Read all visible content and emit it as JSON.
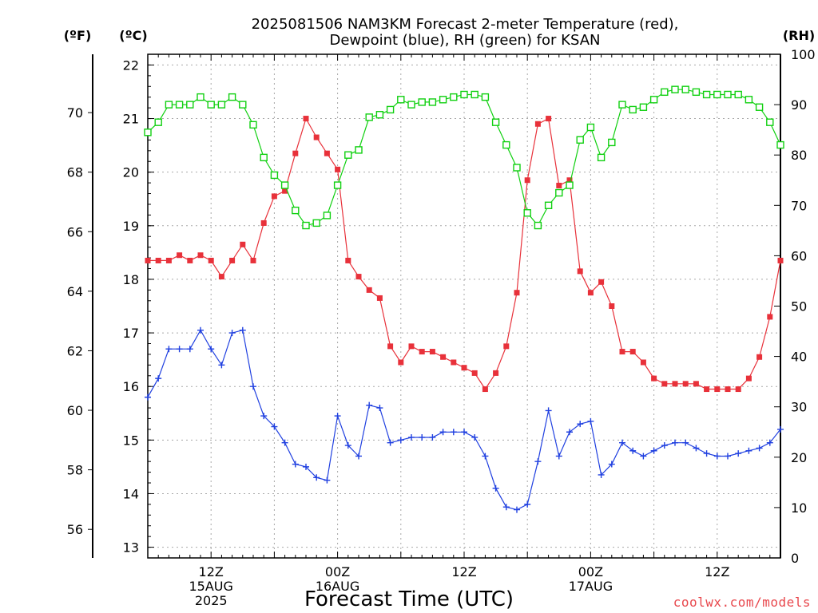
{
  "chart_data": {
    "type": "line",
    "title": "2025081506 NAM3KM Forecast 2-meter Temperature (red),",
    "subtitle": "Dewpoint (blue), RH (green) for KSAN",
    "xlabel": "Forecast Time (UTC)",
    "credit": "coolwx.com/models",
    "units": {
      "fahrenheit": "(ºF)",
      "celsius": "(ºC)",
      "rh": "(RH)"
    },
    "axes": {
      "celsius": {
        "range": [
          12.8,
          22.2
        ],
        "ticks": [
          "13",
          "14",
          "15",
          "16",
          "17",
          "18",
          "19",
          "20",
          "21",
          "22"
        ]
      },
      "fahrenheit": {
        "ticks": [
          "56",
          "58",
          "60",
          "62",
          "64",
          "66",
          "68",
          "70"
        ]
      },
      "rh": {
        "range": [
          0,
          100
        ],
        "ticks": [
          "0",
          "10",
          "20",
          "30",
          "40",
          "50",
          "60",
          "70",
          "80",
          "90",
          "100"
        ]
      }
    },
    "x_hours": [
      0,
      1,
      2,
      3,
      4,
      5,
      6,
      7,
      8,
      9,
      10,
      11,
      12,
      13,
      14,
      15,
      16,
      17,
      18,
      19,
      20,
      21,
      22,
      23,
      24,
      25,
      26,
      27,
      28,
      29,
      30,
      31,
      32,
      33,
      34,
      35,
      36,
      37,
      38,
      39,
      40,
      41,
      42,
      43,
      44,
      45,
      46,
      47,
      48,
      49,
      50,
      51,
      52,
      53,
      54,
      55,
      56,
      57,
      58,
      59,
      60
    ],
    "x_ticks": [
      {
        "hour": 6,
        "lines": [
          "12Z",
          "15AUG",
          "2025"
        ]
      },
      {
        "hour": 18,
        "lines": [
          "00Z",
          "16AUG"
        ]
      },
      {
        "hour": 30,
        "lines": [
          "12Z"
        ]
      },
      {
        "hour": 42,
        "lines": [
          "00Z",
          "17AUG"
        ]
      },
      {
        "hour": 54,
        "lines": [
          "12Z"
        ]
      }
    ],
    "series": [
      {
        "name": "2-meter Temperature",
        "axis": "celsius",
        "color": "#e8313a",
        "marker": "filled-square",
        "values": [
          18.35,
          18.35,
          18.35,
          18.45,
          18.35,
          18.45,
          18.35,
          18.05,
          18.35,
          18.65,
          18.35,
          19.05,
          19.55,
          19.65,
          20.35,
          21.0,
          20.65,
          20.35,
          20.05,
          18.35,
          18.05,
          17.8,
          17.65,
          16.75,
          16.45,
          16.75,
          16.65,
          16.65,
          16.55,
          16.45,
          16.35,
          16.25,
          15.95,
          16.25,
          16.75,
          17.75,
          19.85,
          20.9,
          21.0,
          19.75,
          19.85,
          18.15,
          17.75,
          17.95,
          17.5,
          16.65,
          16.65,
          16.45,
          16.15,
          16.05,
          16.05,
          16.05,
          16.05,
          15.95,
          15.95,
          15.95,
          15.95,
          16.15,
          16.55,
          17.3,
          18.35
        ]
      },
      {
        "name": "Dewpoint",
        "axis": "celsius",
        "color": "#2040e0",
        "marker": "plus",
        "values": [
          15.8,
          16.15,
          16.7,
          16.7,
          16.7,
          17.05,
          16.7,
          16.4,
          17.0,
          17.05,
          16.0,
          15.45,
          15.25,
          14.95,
          14.55,
          14.5,
          14.3,
          14.25,
          15.45,
          14.9,
          14.7,
          15.65,
          15.6,
          14.95,
          15.0,
          15.05,
          15.05,
          15.05,
          15.15,
          15.15,
          15.15,
          15.05,
          14.7,
          14.1,
          13.75,
          13.7,
          13.8,
          14.6,
          15.55,
          14.7,
          15.15,
          15.3,
          15.35,
          14.35,
          14.55,
          14.95,
          14.8,
          14.7,
          14.8,
          14.9,
          14.95,
          14.95,
          14.85,
          14.75,
          14.7,
          14.7,
          14.75,
          14.8,
          14.85,
          14.95,
          15.2
        ]
      },
      {
        "name": "RH",
        "axis": "rh",
        "color": "#10d010",
        "marker": "open-square",
        "values": [
          84.5,
          86.5,
          90,
          90,
          90,
          91.5,
          90,
          90,
          91.5,
          90,
          86,
          79.5,
          76,
          74,
          69,
          66,
          66.5,
          68,
          74,
          80,
          81,
          87.5,
          88,
          89,
          91,
          90,
          90.5,
          90.5,
          91,
          91.5,
          92,
          92,
          91.5,
          86.5,
          82,
          77.5,
          68.5,
          66,
          70,
          72.5,
          74,
          83,
          85.5,
          79.5,
          82.5,
          90,
          89,
          89.5,
          91,
          92.5,
          93,
          93,
          92.5,
          92,
          92,
          92,
          92,
          91,
          89.5,
          86.5,
          82
        ]
      }
    ],
    "grid": true
  }
}
